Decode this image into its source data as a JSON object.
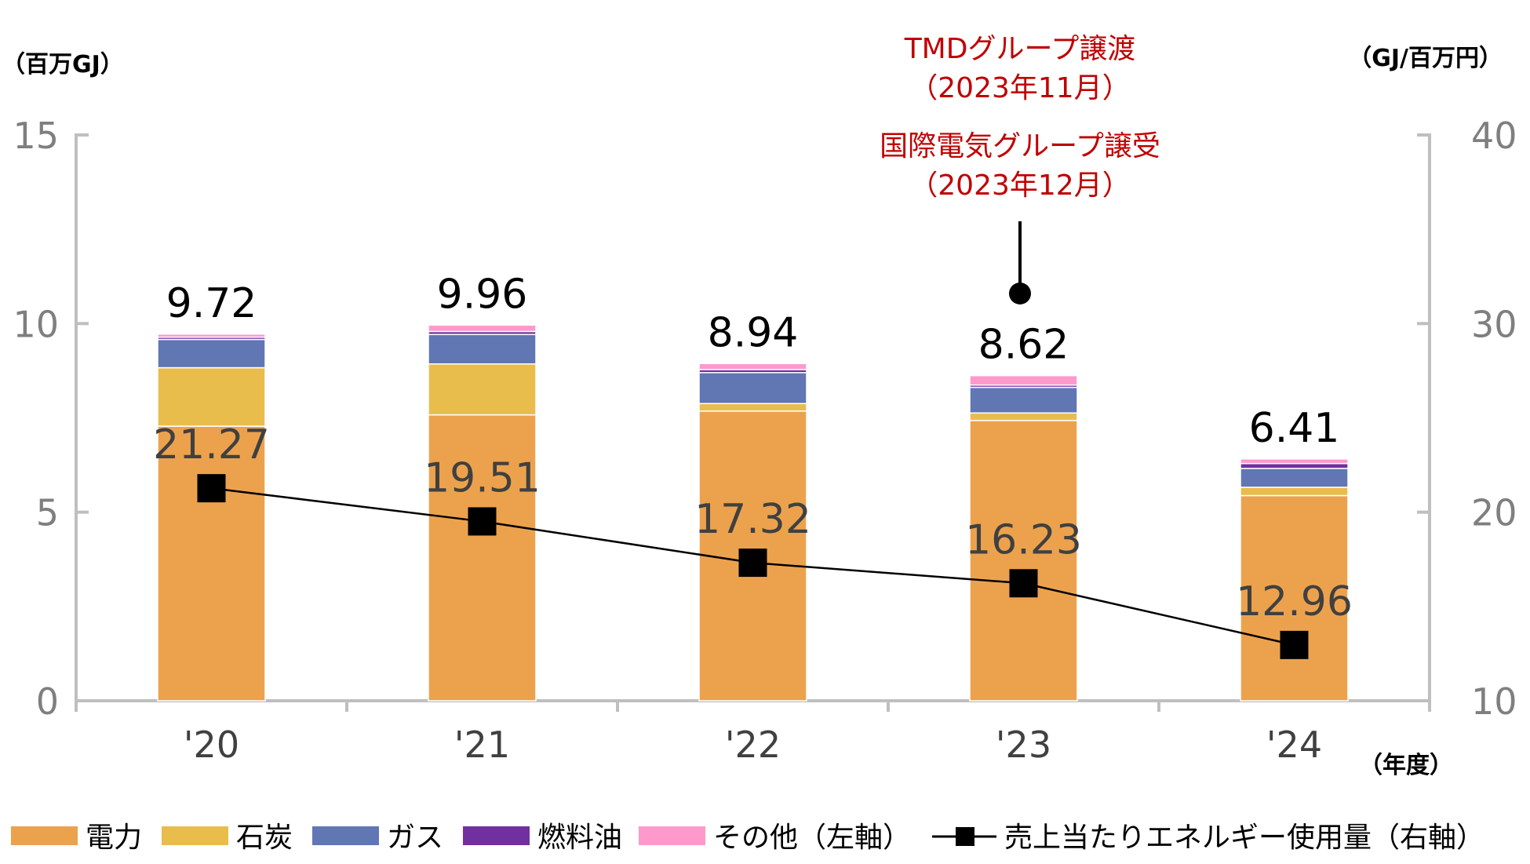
{
  "chart_data": {
    "type": "bar",
    "stacked": true,
    "categories": [
      "'20",
      "'21",
      "'22",
      "'23",
      "'24"
    ],
    "series": [
      {
        "name": "電力",
        "values": [
          7.28,
          7.58,
          7.68,
          7.43,
          5.44
        ],
        "color": "#ECA24D"
      },
      {
        "name": "石炭",
        "values": [
          1.55,
          1.35,
          0.2,
          0.2,
          0.22
        ],
        "color": "#E9BD4C"
      },
      {
        "name": "ガス",
        "values": [
          0.75,
          0.78,
          0.82,
          0.68,
          0.5
        ],
        "color": "#6077B4"
      },
      {
        "name": "燃料油",
        "values": [
          0.06,
          0.08,
          0.08,
          0.06,
          0.13
        ],
        "color": "#7030A0"
      },
      {
        "name": "その他（左軸）",
        "values": [
          0.08,
          0.17,
          0.16,
          0.25,
          0.12
        ],
        "color": "#FF99CC"
      }
    ],
    "totals": [
      "9.72",
      "9.96",
      "8.94",
      "8.62",
      "6.41"
    ],
    "line_series": {
      "name": "売上当たりエネルギー使用量（右軸）",
      "values": [
        21.27,
        19.51,
        17.32,
        16.23,
        12.96
      ],
      "labels": [
        "21.27",
        "19.51",
        "17.32",
        "16.23",
        "12.96"
      ],
      "color": "#000000",
      "marker": "square"
    },
    "y_left": {
      "label": "（百万GJ）",
      "ylim": [
        0,
        15
      ],
      "ticks": [
        "0",
        "5",
        "10",
        "15"
      ]
    },
    "y_right": {
      "label": "（GJ/百万円）",
      "ylim": [
        10,
        40
      ],
      "ticks": [
        "10",
        "20",
        "30",
        "40"
      ]
    },
    "x_label": "（年度）",
    "annotation": {
      "category": "'23",
      "lines": [
        "TMDグループ譲渡",
        "（2023年11月）",
        "国際電気グループ譲受",
        "（2023年12月）"
      ]
    },
    "legend_position": "bottom",
    "grid": false
  }
}
